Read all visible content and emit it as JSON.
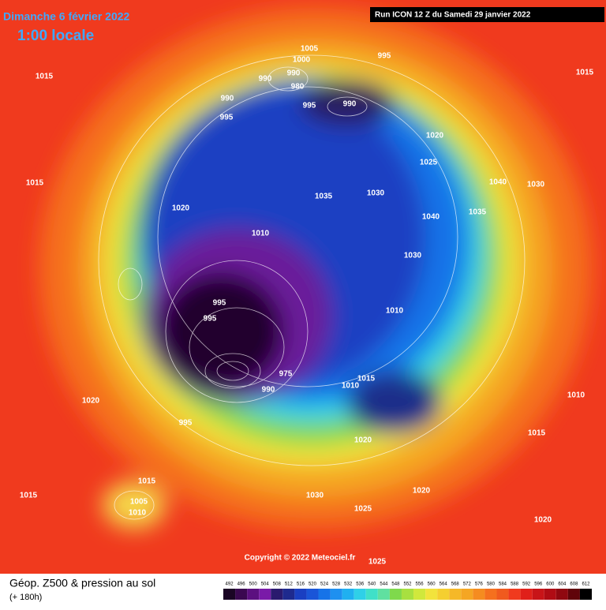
{
  "header": {
    "date": "Dimanche 6 février 2022",
    "time": "1:00 locale",
    "run": "Run ICON 12 Z du Samedi 29 janvier 2022"
  },
  "copyright": "Copyright © 2022 Meteociel.fr",
  "legend": {
    "title": "Géop. Z500 & pression au sol",
    "lead": "(+ 180h)",
    "scale": [
      492,
      496,
      500,
      504,
      508,
      512,
      516,
      520,
      524,
      528,
      532,
      536,
      540,
      544,
      548,
      552,
      556,
      560,
      564,
      568,
      572,
      576,
      580,
      584,
      588,
      592,
      596,
      600,
      604,
      608,
      612
    ]
  },
  "pressure_labels": [
    1005,
    995,
    1000,
    990,
    990,
    980,
    990,
    995,
    990,
    995,
    1015,
    1015,
    1020,
    1010,
    1035,
    1030,
    1040,
    1030,
    1010,
    995,
    995,
    975,
    990,
    995,
    1015,
    1010,
    1020,
    1015,
    1005,
    1010,
    1015,
    1020,
    1025,
    1030,
    1020,
    1025,
    1015,
    1020,
    1010,
    1035,
    1040,
    1030,
    1025,
    1020,
    1015
  ]
}
